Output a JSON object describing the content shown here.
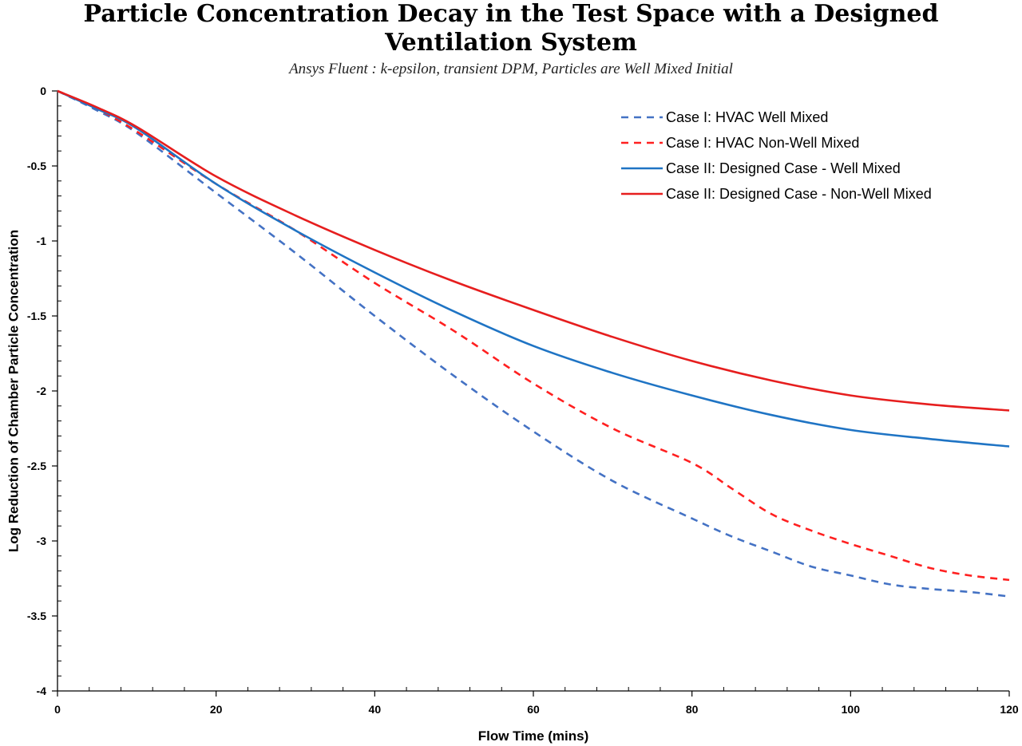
{
  "chart_data": {
    "type": "line",
    "title_line1": "Particle Concentration Decay in the Test Space with a Designed",
    "title_line2": "Ventilation System",
    "subtitle": "Ansys Fluent : k-epsilon, transient DPM, Particles are Well  Mixed Initial",
    "xlabel": "Flow Time (mins)",
    "ylabel": "Log Reduction of Chamber Particle Concentration",
    "xlim": [
      0,
      120
    ],
    "ylim": [
      -4,
      0
    ],
    "x_ticks": [
      0,
      20,
      40,
      60,
      80,
      100,
      120
    ],
    "y_ticks": [
      0,
      -0.5,
      -1,
      -1.5,
      -2,
      -2.5,
      -3,
      -3.5,
      -4
    ],
    "y_tick_labels": [
      "0",
      "-0.5",
      "-1",
      "-1.5",
      "-2",
      "-2.5",
      "-3",
      "-3.5",
      "-4"
    ],
    "grid": false,
    "legend_position": "top-right",
    "series": [
      {
        "name": "Case I: HVAC Well Mixed",
        "color": "#4472C4",
        "dash": "dashed",
        "x": [
          0,
          5,
          10,
          20,
          30,
          40,
          50,
          60,
          70,
          80,
          85,
          90,
          95,
          100,
          105,
          110,
          115,
          120
        ],
        "y": [
          0,
          -0.13,
          -0.28,
          -0.68,
          -1.08,
          -1.5,
          -1.9,
          -2.27,
          -2.6,
          -2.85,
          -2.97,
          -3.07,
          -3.17,
          -3.23,
          -3.29,
          -3.32,
          -3.34,
          -3.37
        ]
      },
      {
        "name": "Case I: HVAC Non-Well Mixed",
        "color": "#FF2020",
        "dash": "dashed",
        "x": [
          0,
          5,
          10,
          20,
          30,
          40,
          50,
          60,
          70,
          80,
          85,
          90,
          95,
          100,
          105,
          110,
          115,
          120
        ],
        "y": [
          0,
          -0.12,
          -0.27,
          -0.62,
          -0.93,
          -1.28,
          -1.6,
          -1.95,
          -2.25,
          -2.48,
          -2.65,
          -2.82,
          -2.93,
          -3.02,
          -3.1,
          -3.18,
          -3.23,
          -3.26
        ]
      },
      {
        "name": "Case II: Designed Case - Well Mixed",
        "color": "#1F74C4",
        "dash": "solid",
        "x": [
          0,
          5,
          10,
          20,
          30,
          40,
          50,
          60,
          70,
          80,
          90,
          100,
          110,
          120
        ],
        "y": [
          0,
          -0.12,
          -0.25,
          -0.62,
          -0.93,
          -1.21,
          -1.47,
          -1.7,
          -1.88,
          -2.03,
          -2.16,
          -2.26,
          -2.32,
          -2.37
        ]
      },
      {
        "name": "Case II: Designed Case - Non-Well Mixed",
        "color": "#E61E1E",
        "dash": "solid",
        "x": [
          0,
          5,
          10,
          20,
          30,
          40,
          50,
          60,
          70,
          80,
          90,
          100,
          110,
          120
        ],
        "y": [
          0,
          -0.11,
          -0.24,
          -0.57,
          -0.83,
          -1.06,
          -1.27,
          -1.46,
          -1.64,
          -1.8,
          -1.93,
          -2.03,
          -2.09,
          -2.13
        ]
      }
    ]
  }
}
